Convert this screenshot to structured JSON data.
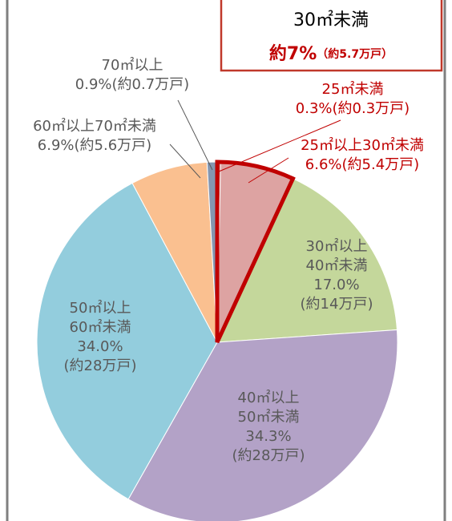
{
  "chart_data": {
    "type": "pie",
    "categories": [
      "25㎡未満",
      "25㎡以上30㎡未満",
      "30㎡以上\n40㎡未満",
      "40㎡以上\n50㎡未満",
      "50㎡以上\n60㎡未満",
      "60㎡以上70㎡未満",
      "70㎡以上"
    ],
    "values": [
      0.3,
      6.6,
      17.0,
      34.3,
      34.0,
      6.9,
      0.9
    ],
    "value_labels": [
      "0.3%",
      "6.6%",
      "17.0%",
      "34.3%",
      "34.0%",
      "6.9%",
      "0.9%"
    ],
    "count_labels": [
      "(約0.3万戸)",
      "(約5.4万戸)",
      "(約14万戸)",
      "(約28万戸)",
      "(約28万戸)",
      "(約5.6万戸)",
      "(約0.7万戸)"
    ],
    "colors": [
      "#c0504d",
      "#dda3a2",
      "#c4d79b",
      "#b3a2c7",
      "#93cddd",
      "#fac090",
      "#8496b0"
    ],
    "label_colors": [
      "#c00000",
      "#c00000",
      "#595959",
      "#595959",
      "#595959",
      "#595959",
      "#595959"
    ],
    "highlighted": [
      true,
      true,
      false,
      false,
      false,
      false,
      false
    ],
    "highlight_color": "#c00000",
    "annotation": {
      "title": "30㎡未満",
      "value_label": "約7%",
      "count_label": "（約5.7万戸）"
    }
  }
}
